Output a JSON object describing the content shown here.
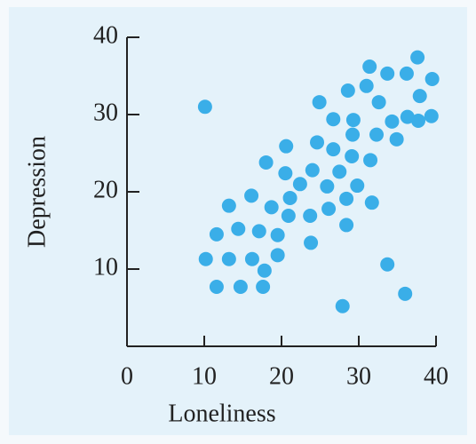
{
  "chart_data": {
    "type": "scatter",
    "x_label": "Loneliness",
    "y_label": "Depression",
    "x": [
      10.1,
      10.2,
      11.6,
      11.6,
      13.2,
      13.2,
      14.4,
      14.7,
      16.1,
      16.2,
      17.1,
      17.6,
      17.8,
      18.0,
      18.7,
      19.5,
      19.5,
      20.5,
      20.6,
      20.9,
      21.1,
      22.4,
      23.7,
      23.8,
      24.0,
      24.6,
      24.9,
      25.9,
      26.1,
      26.7,
      26.7,
      27.5,
      27.9,
      28.4,
      28.4,
      28.6,
      29.1,
      29.2,
      29.3,
      29.8,
      31.0,
      31.4,
      31.5,
      31.7,
      32.3,
      32.6,
      33.7,
      33.7,
      34.3,
      34.9,
      36.0,
      36.2,
      36.3,
      37.6,
      37.7,
      37.9,
      39.4,
      39.5
    ],
    "values": [
      31.0,
      11.3,
      14.5,
      7.7,
      18.2,
      11.3,
      15.2,
      7.7,
      19.5,
      11.3,
      14.9,
      7.7,
      9.8,
      23.8,
      18.0,
      14.4,
      11.8,
      22.4,
      25.9,
      16.9,
      19.2,
      21.0,
      16.9,
      13.4,
      22.8,
      26.4,
      31.6,
      20.7,
      17.8,
      25.5,
      29.4,
      22.6,
      5.2,
      15.7,
      19.1,
      33.1,
      24.6,
      27.4,
      29.3,
      20.8,
      33.7,
      36.2,
      24.1,
      18.6,
      27.4,
      31.6,
      10.6,
      35.3,
      29.1,
      26.8,
      6.8,
      35.3,
      29.7,
      37.4,
      29.2,
      32.4,
      29.8,
      34.6
    ],
    "color": "#3aaee8",
    "xlim": [
      0,
      40
    ],
    "ylim": [
      0,
      40
    ],
    "xticks": [
      0,
      10,
      20,
      30,
      40
    ],
    "yticks": [
      10,
      20,
      30,
      40
    ]
  }
}
